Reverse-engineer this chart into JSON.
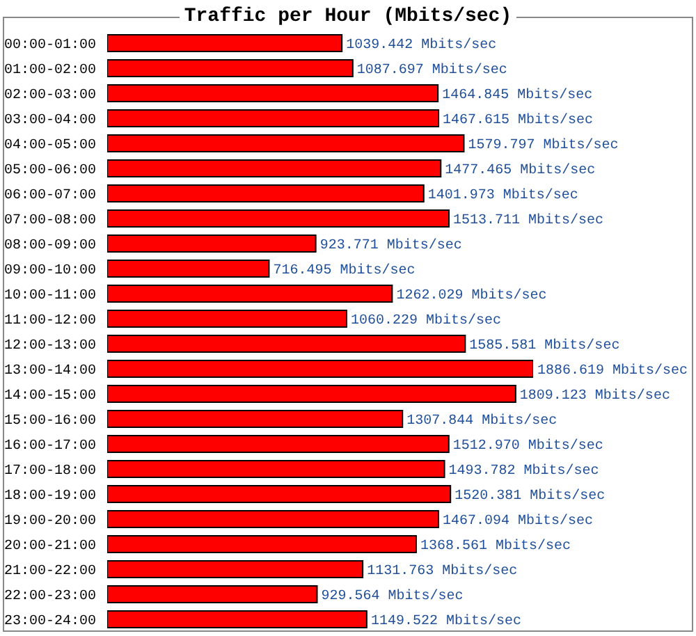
{
  "chart_data": {
    "type": "bar",
    "orientation": "horizontal",
    "title": "Traffic per Hour (Mbits/sec)",
    "categories": [
      "00:00-01:00",
      "01:00-02:00",
      "02:00-03:00",
      "03:00-04:00",
      "04:00-05:00",
      "05:00-06:00",
      "06:00-07:00",
      "07:00-08:00",
      "08:00-09:00",
      "09:00-10:00",
      "10:00-11:00",
      "11:00-12:00",
      "12:00-13:00",
      "13:00-14:00",
      "14:00-15:00",
      "15:00-16:00",
      "16:00-17:00",
      "17:00-18:00",
      "18:00-19:00",
      "19:00-20:00",
      "20:00-21:00",
      "21:00-22:00",
      "22:00-23:00",
      "23:00-24:00"
    ],
    "values": [
      1039.442,
      1087.697,
      1464.845,
      1467.615,
      1579.797,
      1477.465,
      1401.973,
      1513.711,
      923.771,
      716.495,
      1262.029,
      1060.229,
      1585.581,
      1886.619,
      1809.123,
      1307.844,
      1512.97,
      1493.782,
      1520.381,
      1467.094,
      1368.561,
      1131.763,
      929.564,
      1149.522
    ],
    "color": "#ff0000",
    "value_labels": [
      "1039.442 Mbits/sec",
      "1087.697 Mbits/sec",
      "1464.845 Mbits/sec",
      "1467.615 Mbits/sec",
      "1579.797 Mbits/sec",
      "1477.465 Mbits/sec",
      "1401.973 Mbits/sec",
      "1513.711 Mbits/sec",
      "923.771 Mbits/sec",
      "716.495 Mbits/sec",
      "1262.029 Mbits/sec",
      "1060.229 Mbits/sec",
      "1585.581 Mbits/sec",
      "1886.619 Mbits/sec",
      "1809.123 Mbits/sec",
      "1307.844 Mbits/sec",
      "1512.970 Mbits/sec",
      "1493.782 Mbits/sec",
      "1520.381 Mbits/sec",
      "1467.094 Mbits/sec",
      "1368.561 Mbits/sec",
      "1131.763 Mbits/sec",
      "929.564 Mbits/sec",
      "1149.522 Mbits/sec"
    ]
  }
}
